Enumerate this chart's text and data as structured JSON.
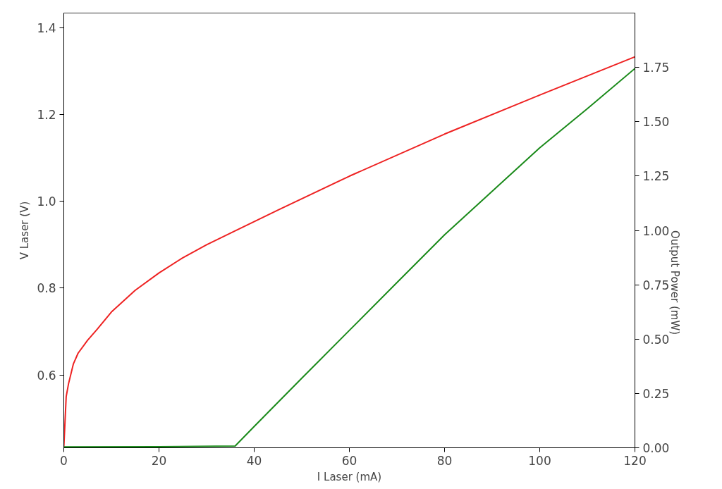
{
  "chart_data": {
    "type": "line",
    "xlabel": "I Laser (mA)",
    "ylabel": "V Laser (V)",
    "y2label": "Output Power (mW)",
    "xlim": [
      0,
      120
    ],
    "xticks": [
      0,
      20,
      40,
      60,
      80,
      100,
      120
    ],
    "ylim": [
      0.432,
      1.434
    ],
    "yticks": [
      {
        "value": 0.6,
        "label": "0.6"
      },
      {
        "value": 0.8,
        "label": "0.8"
      },
      {
        "value": 1.0,
        "label": "1.0"
      },
      {
        "value": 1.2,
        "label": "1.2"
      },
      {
        "value": 1.4,
        "label": "1.4"
      }
    ],
    "y2lim": [
      0,
      2.0
    ],
    "y2ticks": [
      {
        "value": 0,
        "label": "0.00"
      },
      {
        "value": 0.25,
        "label": "0.25"
      },
      {
        "value": 0.5,
        "label": "0.50"
      },
      {
        "value": 0.75,
        "label": "0.75"
      },
      {
        "value": 1.0,
        "label": "1.00"
      },
      {
        "value": 1.25,
        "label": "1.25"
      },
      {
        "value": 1.5,
        "label": "1.50"
      },
      {
        "value": 1.75,
        "label": "1.75"
      }
    ],
    "grid": false,
    "series": [
      {
        "color": "#ee2222",
        "x": [
          0,
          0.5,
          1,
          2,
          3,
          5,
          7,
          10,
          15,
          20,
          25,
          30,
          36,
          45,
          60,
          80,
          100,
          120
        ],
        "values": [
          0.432,
          0.55,
          0.58,
          0.625,
          0.65,
          0.68,
          0.705,
          0.745,
          0.795,
          0.835,
          0.87,
          0.9,
          0.932,
          0.98,
          1.058,
          1.155,
          1.245,
          1.333
        ]
      },
      {
        "color": "#1a8a1a",
        "axis": "y2",
        "x": [
          0,
          20,
          36,
          40,
          50,
          60,
          70,
          80,
          90,
          100,
          110,
          120
        ],
        "values": [
          0.004,
          0.005,
          0.008,
          0.098,
          0.32,
          0.54,
          0.76,
          0.98,
          1.18,
          1.38,
          1.56,
          1.745
        ]
      }
    ]
  }
}
